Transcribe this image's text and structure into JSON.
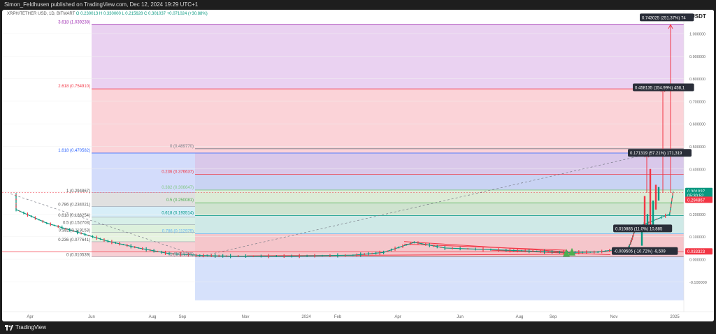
{
  "header": {
    "publish_line": "Simon_Feldhusen published on TradingView.com, Dec 12, 2024 19:29 UTC+1",
    "symbol_line": "XRPH/TETHER USD, 1D, BITMART",
    "ohlc_line": "O 0.230013  H 0.330000  L 0.215628  C 0.301037  +0.071024 (+30.88%)"
  },
  "footer": {
    "brand": "TradingView"
  },
  "chart_data": {
    "type": "line",
    "subtype": "candlestick with Fibonacci retracement/extension overlays",
    "price_axis_unit": "USDT",
    "y_ticks": [
      "1.000000",
      "0.900000",
      "0.800000",
      "0.700000",
      "0.600000",
      "0.500000",
      "0.400000",
      "0.300000",
      "0.200000",
      "0.100000",
      "0.000000",
      "-0.100000"
    ],
    "ylim": [
      -0.14,
      1.08
    ],
    "x_ticks": [
      "Apr",
      "Jun",
      "Aug",
      "Sep",
      "Nov",
      "2024",
      "Feb",
      "Apr",
      "Jun",
      "Aug",
      "Sep",
      "Nov",
      "2025"
    ],
    "price_series": {
      "name": "XRPH/TETHER USD",
      "points": [
        [
          "Mar 2023",
          0.29
        ],
        [
          "Mar 2023",
          0.22
        ],
        [
          "Apr 2023",
          0.16
        ],
        [
          "May 2023",
          0.12
        ],
        [
          "Jun 2023",
          0.08
        ],
        [
          "Jul 2023",
          0.05
        ],
        [
          "Aug 2023",
          0.025
        ],
        [
          "Sep 2023",
          0.017
        ],
        [
          "Oct 2023",
          0.014
        ],
        [
          "Dec 2023",
          0.014
        ],
        [
          "Feb 2024",
          0.018
        ],
        [
          "Mar 2024",
          0.03
        ],
        [
          "Apr 2024",
          0.075
        ],
        [
          "May 2024",
          0.05
        ],
        [
          "Jul 2024",
          0.04
        ],
        [
          "Aug 2024",
          0.035
        ],
        [
          "Sep 2024",
          0.03
        ],
        [
          "Oct 2024",
          0.032
        ],
        [
          "Nov 2024",
          0.05
        ],
        [
          "Nov 2024",
          0.09
        ],
        [
          "Nov 2024",
          0.14
        ],
        [
          "Dec 2024",
          0.2
        ],
        [
          "Dec 2024",
          0.301037
        ]
      ]
    },
    "fib_left": [
      {
        "label": "1 (0.294867)",
        "price": 0.294867
      },
      {
        "label": "0.786 (0.234021)",
        "price": 0.234021
      },
      {
        "label": "0.618 (0.186254)",
        "price": 0.186254
      },
      {
        "label": "0.5 (0.152703)",
        "price": 0.152703
      },
      {
        "label": "0.382 (0.119153)",
        "price": 0.119153
      },
      {
        "label": "0.236 (0.077641)",
        "price": 0.077641
      },
      {
        "label": "0 (0.010539)",
        "price": 0.010539
      }
    ],
    "fib_right": [
      {
        "label": "3.618 (1.039238)",
        "price": 1.039238,
        "color": "#9c27b0"
      },
      {
        "label": "2.618 (0.754910)",
        "price": 0.75491,
        "color": "#f23645"
      },
      {
        "label": "1.618 (0.470582)",
        "price": 0.470582,
        "color": "#2962ff"
      },
      {
        "label": "0 (0.489770)",
        "price": 0.48977,
        "color": "#787b86"
      },
      {
        "label": "0.236 (0.376637)",
        "price": 0.376637,
        "color": "#f23645"
      },
      {
        "label": "0.382 (0.306647)",
        "price": 0.306647,
        "color": "#81c784"
      },
      {
        "label": "0.5 (0.250081)",
        "price": 0.250081,
        "color": "#4caf50"
      },
      {
        "label": "0.618 (0.193514)",
        "price": 0.193514,
        "color": "#009688"
      },
      {
        "label": "0.786 (0.112979)",
        "price": 0.112979,
        "color": "#64b5f6"
      },
      {
        "label": "1 (0.010392)",
        "price": 0.010392,
        "color": "#787b86"
      }
    ],
    "annotations": [
      {
        "text": "0.743025 (251.37%) 74",
        "price": 1.07
      },
      {
        "text": "0.458135 (154.99%) 458,1",
        "price": 0.76
      },
      {
        "text": "0.171319 (57.21%) 171,319",
        "price": 0.47
      },
      {
        "text": "0.010885 (11.0%) 10,885",
        "price": 0.135
      },
      {
        "text": "-0.009505 (-10.72%) -9,509",
        "price": 0.035
      }
    ],
    "price_labels": [
      {
        "text": "0.301037",
        "price": 0.301037,
        "color": "#089981"
      },
      {
        "text": "05:30:52",
        "price": 0.282,
        "color": "#089981"
      },
      {
        "text": "0.294867",
        "price": 0.262,
        "color": "#f23645"
      },
      {
        "text": "0.033323",
        "price": 0.033323,
        "color": "#f23645"
      }
    ],
    "colors": {
      "up": "#089981",
      "down": "#f23645",
      "accent": "#2962ff"
    }
  }
}
